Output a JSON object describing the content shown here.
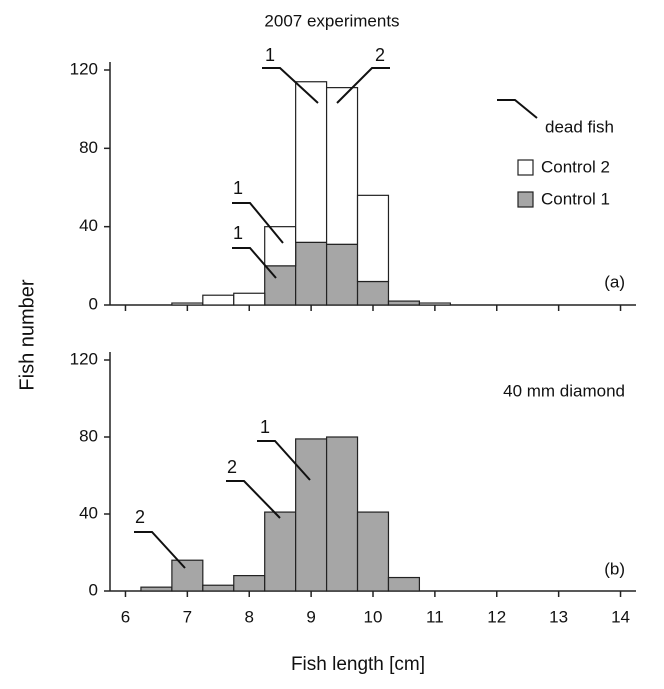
{
  "chart_data": [
    {
      "type": "histogram",
      "title": "2007 experiments",
      "ylabel": "Fish number",
      "panel_label": "(a)",
      "bins": [
        6.75,
        7.25,
        7.75,
        8.25,
        8.75,
        9.25,
        9.75,
        10.25,
        10.75,
        11.25
      ],
      "stacked": true,
      "series": [
        {
          "name": "Control 1",
          "color": "#a6a6a6",
          "values": [
            0,
            0,
            0,
            20,
            32,
            31,
            12,
            2,
            0
          ]
        },
        {
          "name": "Control 2",
          "color": "#ffffff",
          "values": [
            1,
            5,
            6,
            20,
            82,
            80,
            44,
            0,
            1
          ]
        }
      ],
      "marker_legend": "dead fish",
      "annotations": [
        "1",
        "2",
        "1",
        "1"
      ],
      "xlim": [
        5.75,
        14.25
      ],
      "xticks": [
        6,
        7,
        8,
        9,
        10,
        11,
        12,
        13,
        14
      ],
      "ylim": [
        0,
        120
      ],
      "yticks": [
        0,
        40,
        80,
        120
      ]
    },
    {
      "type": "histogram",
      "subtitle": "40 mm diamond",
      "xlabel": "Fish length [cm]",
      "panel_label": "(b)",
      "bins": [
        6.25,
        6.75,
        7.25,
        7.75,
        8.25,
        8.75,
        9.25,
        9.75,
        10.25,
        10.75
      ],
      "color": "#a6a6a6",
      "values": [
        2,
        16,
        3,
        8,
        41,
        79,
        80,
        41,
        7
      ],
      "annotations": [
        "1",
        "2",
        "2"
      ],
      "xlim": [
        5.75,
        14.25
      ],
      "xticks": [
        6,
        7,
        8,
        9,
        10,
        11,
        12,
        13,
        14
      ],
      "ylim": [
        0,
        120
      ],
      "yticks": [
        0,
        40,
        80,
        120
      ]
    }
  ]
}
